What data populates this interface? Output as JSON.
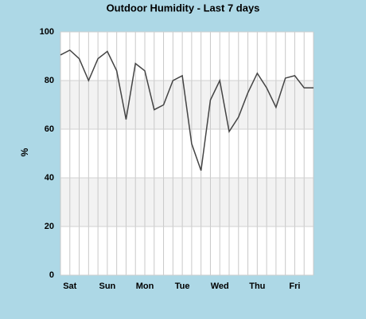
{
  "chart_data": {
    "type": "line",
    "title": "Outdoor Humidity - Last 7 days",
    "y_label": "%",
    "categories": [
      null,
      "Sat",
      null,
      null,
      null,
      "Sun",
      null,
      null,
      null,
      "Mon",
      null,
      null,
      null,
      "Tue",
      null,
      null,
      null,
      "Wed",
      null,
      null,
      null,
      "Thu",
      null,
      null,
      null,
      "Fri",
      null,
      null
    ],
    "values": [
      90.5,
      92.5,
      89,
      80,
      89,
      92,
      84,
      64,
      87,
      84,
      68,
      70,
      80,
      82,
      54,
      43,
      72,
      80,
      59,
      65,
      75,
      83,
      77,
      69,
      81,
      82,
      77,
      77
    ],
    "color": "#444444",
    "ylim": [
      0,
      100
    ],
    "yticks": [
      0,
      20,
      40,
      60,
      80,
      100
    ],
    "grid": true,
    "banded": true
  }
}
